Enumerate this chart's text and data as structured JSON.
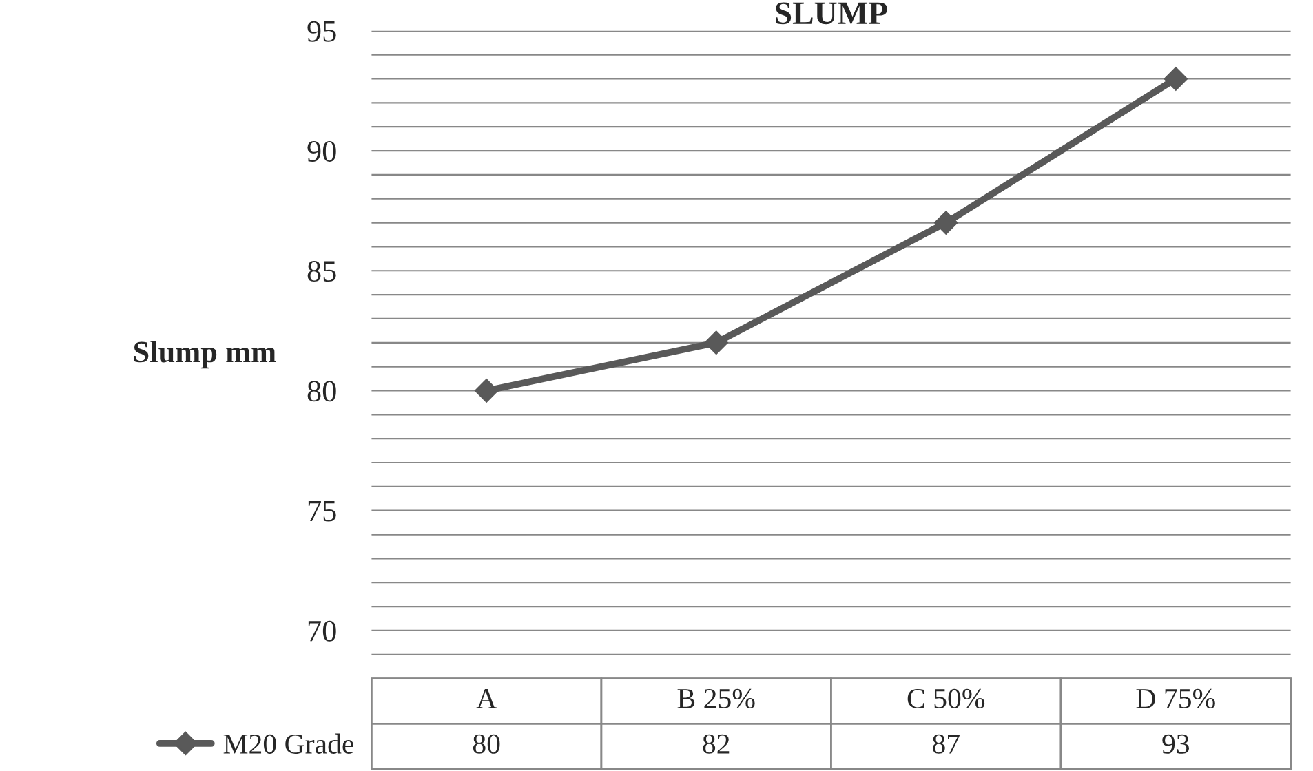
{
  "chart_data": {
    "type": "line",
    "title": "SLUMP",
    "ylabel": "Slump mm",
    "categories": [
      "A",
      "B 25%",
      "C 50%",
      "D 75%"
    ],
    "series": [
      {
        "name": "M20 Grade",
        "color": "#595959",
        "values": [
          80,
          82,
          87,
          93
        ]
      }
    ],
    "ylim": [
      68,
      95
    ],
    "yticks": [
      {
        "value": 69,
        "label": null
      },
      70,
      {
        "value": 71,
        "label": null
      },
      {
        "value": 72,
        "label": null
      },
      {
        "value": 73,
        "label": null
      },
      {
        "value": 74,
        "label": null
      },
      75,
      {
        "value": 76,
        "label": null
      },
      {
        "value": 77,
        "label": null
      },
      {
        "value": 78,
        "label": null
      },
      {
        "value": 79,
        "label": null
      },
      80,
      {
        "value": 81,
        "label": null
      },
      {
        "value": 82,
        "label": null
      },
      {
        "value": 83,
        "label": null
      },
      {
        "value": 84,
        "label": null
      },
      85,
      {
        "value": 86,
        "label": null
      },
      {
        "value": 87,
        "label": null
      },
      {
        "value": 88,
        "label": null
      },
      {
        "value": 89,
        "label": null
      },
      90,
      {
        "value": 91,
        "label": null
      },
      {
        "value": 92,
        "label": null
      },
      {
        "value": 93,
        "label": null
      },
      {
        "value": 94,
        "label": null
      },
      95
    ],
    "grid": "y",
    "marker": "diamond",
    "line_style": "solid",
    "data_labels": true,
    "legend": "left"
  }
}
